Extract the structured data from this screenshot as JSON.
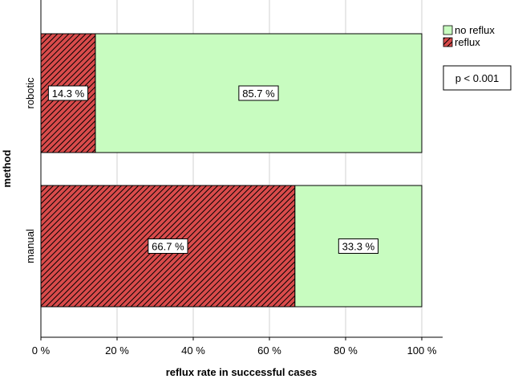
{
  "chart_data": {
    "type": "bar",
    "orientation": "horizontal",
    "stacked": true,
    "categories": [
      "robotic",
      "manual"
    ],
    "series": [
      {
        "name": "reflux",
        "values": [
          14.3,
          66.7
        ],
        "color": "#d94b4b",
        "pattern": "diagonal-hatch"
      },
      {
        "name": "no reflux",
        "values": [
          85.7,
          33.3
        ],
        "color": "#c8fcc0"
      }
    ],
    "data_labels": [
      [
        "14.3 %",
        "85.7 %"
      ],
      [
        "66.7 %",
        "33.3 %"
      ]
    ],
    "xlabel": "reflux rate in successful cases",
    "ylabel": "method",
    "xlim": [
      0,
      100
    ],
    "x_ticks": [
      0,
      20,
      40,
      60,
      80,
      100
    ],
    "x_tick_labels": [
      "0 %",
      "20 %",
      "40 %",
      "60 %",
      "80 %",
      "100 %"
    ],
    "grid": true,
    "legend_position": "top-right",
    "legend_order": [
      "no reflux",
      "reflux"
    ],
    "annotation": "p < 0.001"
  }
}
